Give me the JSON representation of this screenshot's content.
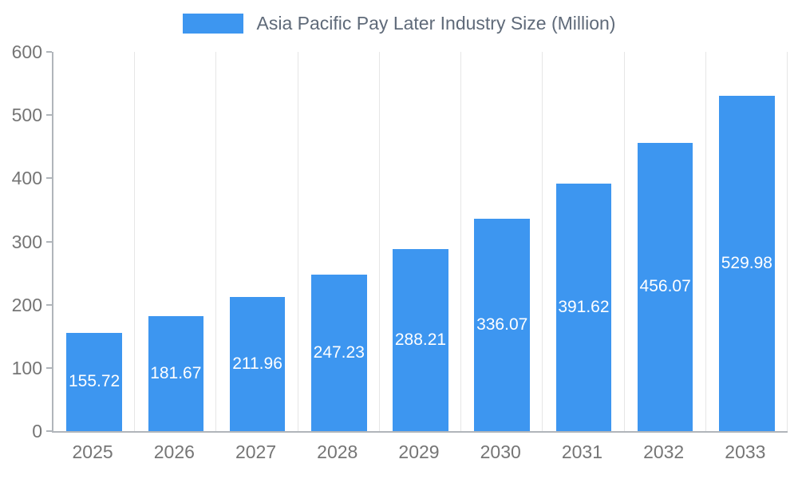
{
  "chart_data": {
    "type": "bar",
    "title": "Asia Pacific Pay Later Industry Size (Million)",
    "categories": [
      "2025",
      "2026",
      "2027",
      "2028",
      "2029",
      "2030",
      "2031",
      "2032",
      "2033"
    ],
    "values": [
      155.72,
      181.67,
      211.96,
      247.23,
      288.21,
      336.07,
      391.62,
      456.07,
      529.98
    ],
    "value_labels": [
      "155.72",
      "181.67",
      "211.96",
      "247.23",
      "288.21",
      "336.07",
      "391.62",
      "456.07",
      "529.98"
    ],
    "xlabel": "",
    "ylabel": "",
    "ylim": [
      0,
      600
    ],
    "yticks": [
      0,
      100,
      200,
      300,
      400,
      500,
      600
    ],
    "grid": "vertical-only",
    "legend_position": "top-center",
    "bar_label_position": "inside-center",
    "colors": {
      "bar": "#3d96f0",
      "bar_label": "#ffffff",
      "axis_text": "#757575",
      "legend_text": "#5f6a79",
      "gridline": "#e6e6e6",
      "axis_line": "#b0b5ba",
      "background": "#ffffff"
    }
  }
}
